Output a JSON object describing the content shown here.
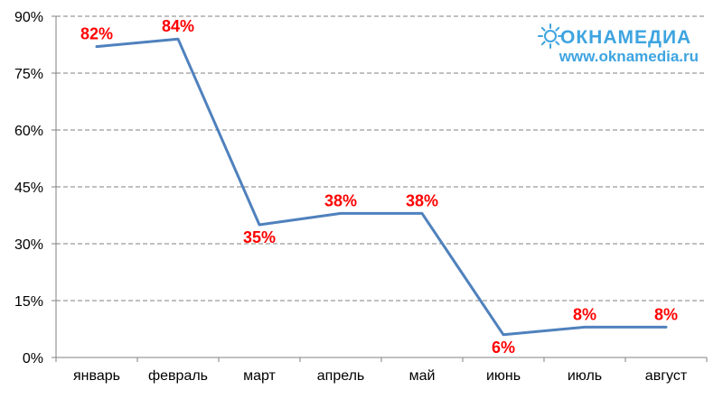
{
  "chart_data": {
    "type": "line",
    "categories": [
      "январь",
      "февраль",
      "март",
      "апрель",
      "май",
      "июнь",
      "июль",
      "август"
    ],
    "values": [
      82,
      84,
      35,
      38,
      38,
      6,
      8,
      8
    ],
    "data_labels": [
      "82%",
      "84%",
      "35%",
      "38%",
      "38%",
      "6%",
      "8%",
      "8%"
    ],
    "yticks": [
      0,
      15,
      30,
      45,
      60,
      75,
      90
    ],
    "ytick_labels": [
      "0%",
      "15%",
      "30%",
      "45%",
      "60%",
      "75%",
      "90%"
    ],
    "ylim": [
      0,
      90
    ],
    "title": "",
    "xlabel": "",
    "ylabel": "",
    "grid": true,
    "grid_style": "dashed horizontal",
    "legend": "none"
  },
  "logo": {
    "brand": "ОКНАМЕДИА",
    "url": "www.oknamedia.ru",
    "icon": "sun-icon"
  },
  "colors": {
    "line": "#4f81bd",
    "data_label": "#ff0000",
    "grid": "#808080",
    "axis": "#808080",
    "logo": "#3ea4e0"
  }
}
